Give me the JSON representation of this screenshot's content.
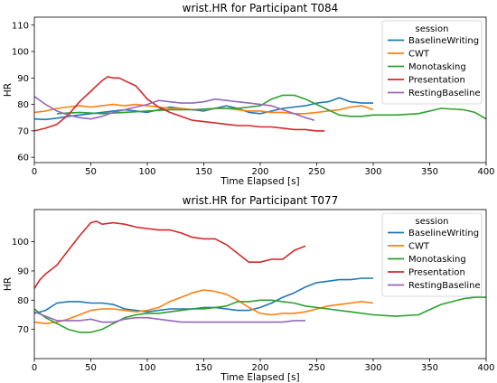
{
  "colors": {
    "BaselineWriting": "#1f77b4",
    "CWT": "#ff7f0e",
    "Monotasking": "#2ca02c",
    "Presentation": "#d62728",
    "RestingBaseline": "#9467bd"
  },
  "chart_data": [
    {
      "type": "line",
      "title": "wrist.HR for Participant T084",
      "xlabel": "Time Elapsed [s]",
      "ylabel": "HR",
      "xlim": [
        0,
        400
      ],
      "ylim": [
        58,
        113
      ],
      "xticks": [
        0,
        50,
        100,
        150,
        200,
        250,
        300,
        350,
        400
      ],
      "yticks": [
        60,
        70,
        80,
        90,
        100,
        110
      ],
      "grid": false,
      "legend": {
        "title": "session",
        "position": "top-right"
      },
      "series": [
        {
          "name": "BaselineWriting",
          "x": [
            0,
            10,
            20,
            30,
            40,
            50,
            60,
            70,
            80,
            90,
            100,
            110,
            120,
            130,
            140,
            150,
            160,
            170,
            180,
            190,
            200,
            210,
            220,
            230,
            240,
            250,
            260,
            270,
            280,
            290,
            300
          ],
          "y": [
            74.5,
            74.3,
            74.8,
            75.5,
            76,
            76.5,
            77,
            77.5,
            78,
            77.5,
            77,
            78,
            79,
            78.5,
            78,
            77.5,
            78.5,
            79.5,
            78.5,
            77,
            76.5,
            77.5,
            78.5,
            79,
            79.5,
            80.5,
            81,
            82.5,
            81,
            80.5,
            80.5
          ]
        },
        {
          "name": "CWT",
          "x": [
            0,
            10,
            20,
            30,
            40,
            50,
            60,
            70,
            80,
            90,
            100,
            110,
            120,
            130,
            140,
            150,
            160,
            170,
            180,
            190,
            200,
            210,
            220,
            230,
            240,
            250,
            260,
            270,
            280,
            290,
            300
          ],
          "y": [
            77,
            77.5,
            78.5,
            79,
            79.5,
            79,
            79.5,
            80,
            79.5,
            80,
            79.5,
            79,
            78.5,
            78.5,
            78,
            78,
            78.5,
            78.5,
            78,
            77.5,
            77.5,
            77,
            77,
            76.5,
            76.5,
            77,
            77.5,
            78,
            79,
            79.5,
            78
          ]
        },
        {
          "name": "Monotasking",
          "x": [
            20,
            40,
            60,
            80,
            100,
            120,
            140,
            160,
            180,
            200,
            210,
            220,
            230,
            240,
            250,
            260,
            270,
            280,
            290,
            300,
            320,
            340,
            360,
            380,
            390,
            400
          ],
          "y": [
            76.5,
            77,
            76.5,
            77,
            77.5,
            78,
            78,
            78.5,
            78.5,
            79.5,
            82,
            83.5,
            83.5,
            82,
            80,
            78,
            76,
            75.5,
            75.5,
            76,
            76,
            76.5,
            78.5,
            78,
            77,
            74.5
          ]
        },
        {
          "name": "Presentation",
          "x": [
            0,
            10,
            20,
            30,
            40,
            50,
            55,
            60,
            65,
            70,
            75,
            80,
            90,
            100,
            110,
            120,
            130,
            140,
            150,
            160,
            170,
            180,
            190,
            200,
            210,
            220,
            230,
            240,
            250,
            257
          ],
          "y": [
            70,
            71,
            72.5,
            76,
            81,
            85,
            87,
            89,
            90.5,
            90,
            90,
            89,
            87,
            82,
            79,
            77,
            75.5,
            74,
            73.5,
            73,
            72.5,
            72,
            72,
            71.5,
            71.5,
            71,
            70.5,
            70.5,
            70,
            70
          ]
        },
        {
          "name": "RestingBaseline",
          "x": [
            0,
            10,
            20,
            30,
            40,
            50,
            60,
            70,
            80,
            90,
            100,
            110,
            120,
            130,
            140,
            150,
            160,
            170,
            180,
            190,
            200,
            210,
            220,
            230,
            240,
            248
          ],
          "y": [
            83,
            80,
            77.5,
            76,
            75,
            74.5,
            75.5,
            77,
            78,
            79,
            80,
            81.5,
            81,
            80.5,
            80.5,
            81,
            82,
            81.5,
            81,
            80.5,
            80,
            79.5,
            78,
            76.5,
            75,
            74
          ]
        }
      ]
    },
    {
      "type": "line",
      "title": "wrist.HR for Participant T077",
      "xlabel": "Time Elapsed [s]",
      "ylabel": "HR",
      "xlim": [
        0,
        400
      ],
      "ylim": [
        60,
        111
      ],
      "xticks": [
        0,
        50,
        100,
        150,
        200,
        250,
        300,
        350,
        400
      ],
      "yticks": [
        70,
        80,
        90,
        100
      ],
      "grid": false,
      "legend": {
        "title": "session",
        "position": "top-right"
      },
      "series": [
        {
          "name": "BaselineWriting",
          "x": [
            0,
            10,
            20,
            30,
            40,
            50,
            60,
            70,
            80,
            90,
            100,
            110,
            120,
            130,
            140,
            150,
            160,
            170,
            180,
            190,
            200,
            210,
            220,
            230,
            240,
            250,
            260,
            270,
            280,
            290,
            300
          ],
          "y": [
            75.5,
            76.5,
            79,
            79.5,
            79.5,
            79,
            79,
            78.5,
            77,
            76.5,
            76,
            76.5,
            77,
            77,
            77,
            77.5,
            77.5,
            77,
            76.5,
            76.5,
            77.5,
            79,
            81,
            82.5,
            84.5,
            86,
            86.5,
            87,
            87,
            87.5,
            87.5
          ]
        },
        {
          "name": "CWT",
          "x": [
            0,
            10,
            20,
            30,
            40,
            50,
            60,
            70,
            80,
            90,
            100,
            110,
            120,
            130,
            140,
            150,
            160,
            170,
            180,
            190,
            200,
            210,
            220,
            230,
            240,
            250,
            260,
            270,
            280,
            290,
            300
          ],
          "y": [
            72.5,
            72,
            72.5,
            73.5,
            75,
            76.5,
            77,
            77,
            76.5,
            76,
            76.5,
            77.5,
            79.5,
            81,
            82.5,
            83.5,
            83,
            82,
            80,
            77.5,
            75.5,
            75,
            75.5,
            75.5,
            76,
            77,
            78,
            78.5,
            79,
            79.5,
            79
          ]
        },
        {
          "name": "Monotasking",
          "x": [
            0,
            10,
            20,
            30,
            40,
            50,
            60,
            70,
            80,
            90,
            100,
            110,
            120,
            130,
            140,
            150,
            160,
            170,
            180,
            190,
            200,
            210,
            220,
            230,
            240,
            260,
            280,
            300,
            320,
            340,
            360,
            380,
            390,
            400
          ],
          "y": [
            77,
            74,
            72,
            70,
            69,
            69,
            70,
            72,
            74,
            75,
            75.5,
            75.5,
            76,
            76.5,
            77,
            77,
            77.5,
            78,
            79.5,
            79.5,
            80,
            80,
            79.5,
            79,
            78,
            77,
            76,
            75,
            74.5,
            75,
            78.5,
            80.5,
            81,
            81
          ]
        },
        {
          "name": "Presentation",
          "x": [
            0,
            5,
            10,
            20,
            30,
            40,
            50,
            55,
            60,
            70,
            80,
            90,
            100,
            110,
            120,
            130,
            140,
            150,
            160,
            170,
            180,
            190,
            200,
            210,
            220,
            230,
            240
          ],
          "y": [
            84,
            87,
            89,
            92,
            97,
            102,
            106.5,
            107,
            106,
            106.5,
            106,
            105,
            104.5,
            104,
            104,
            103,
            101.5,
            101,
            101,
            99,
            96,
            93,
            93,
            94,
            94,
            97,
            98.5
          ]
        },
        {
          "name": "RestingBaseline",
          "x": [
            0,
            10,
            20,
            30,
            40,
            50,
            60,
            70,
            80,
            90,
            100,
            110,
            120,
            130,
            140,
            150,
            160,
            170,
            180,
            190,
            200,
            210,
            220,
            230,
            240
          ],
          "y": [
            76,
            74.5,
            73,
            73,
            73,
            73.5,
            72.5,
            72.5,
            73.5,
            74,
            74,
            73.5,
            73,
            72.5,
            72.5,
            72.5,
            72.5,
            72.5,
            72.5,
            72.5,
            72.5,
            72.5,
            72.5,
            73,
            73
          ]
        }
      ]
    }
  ]
}
